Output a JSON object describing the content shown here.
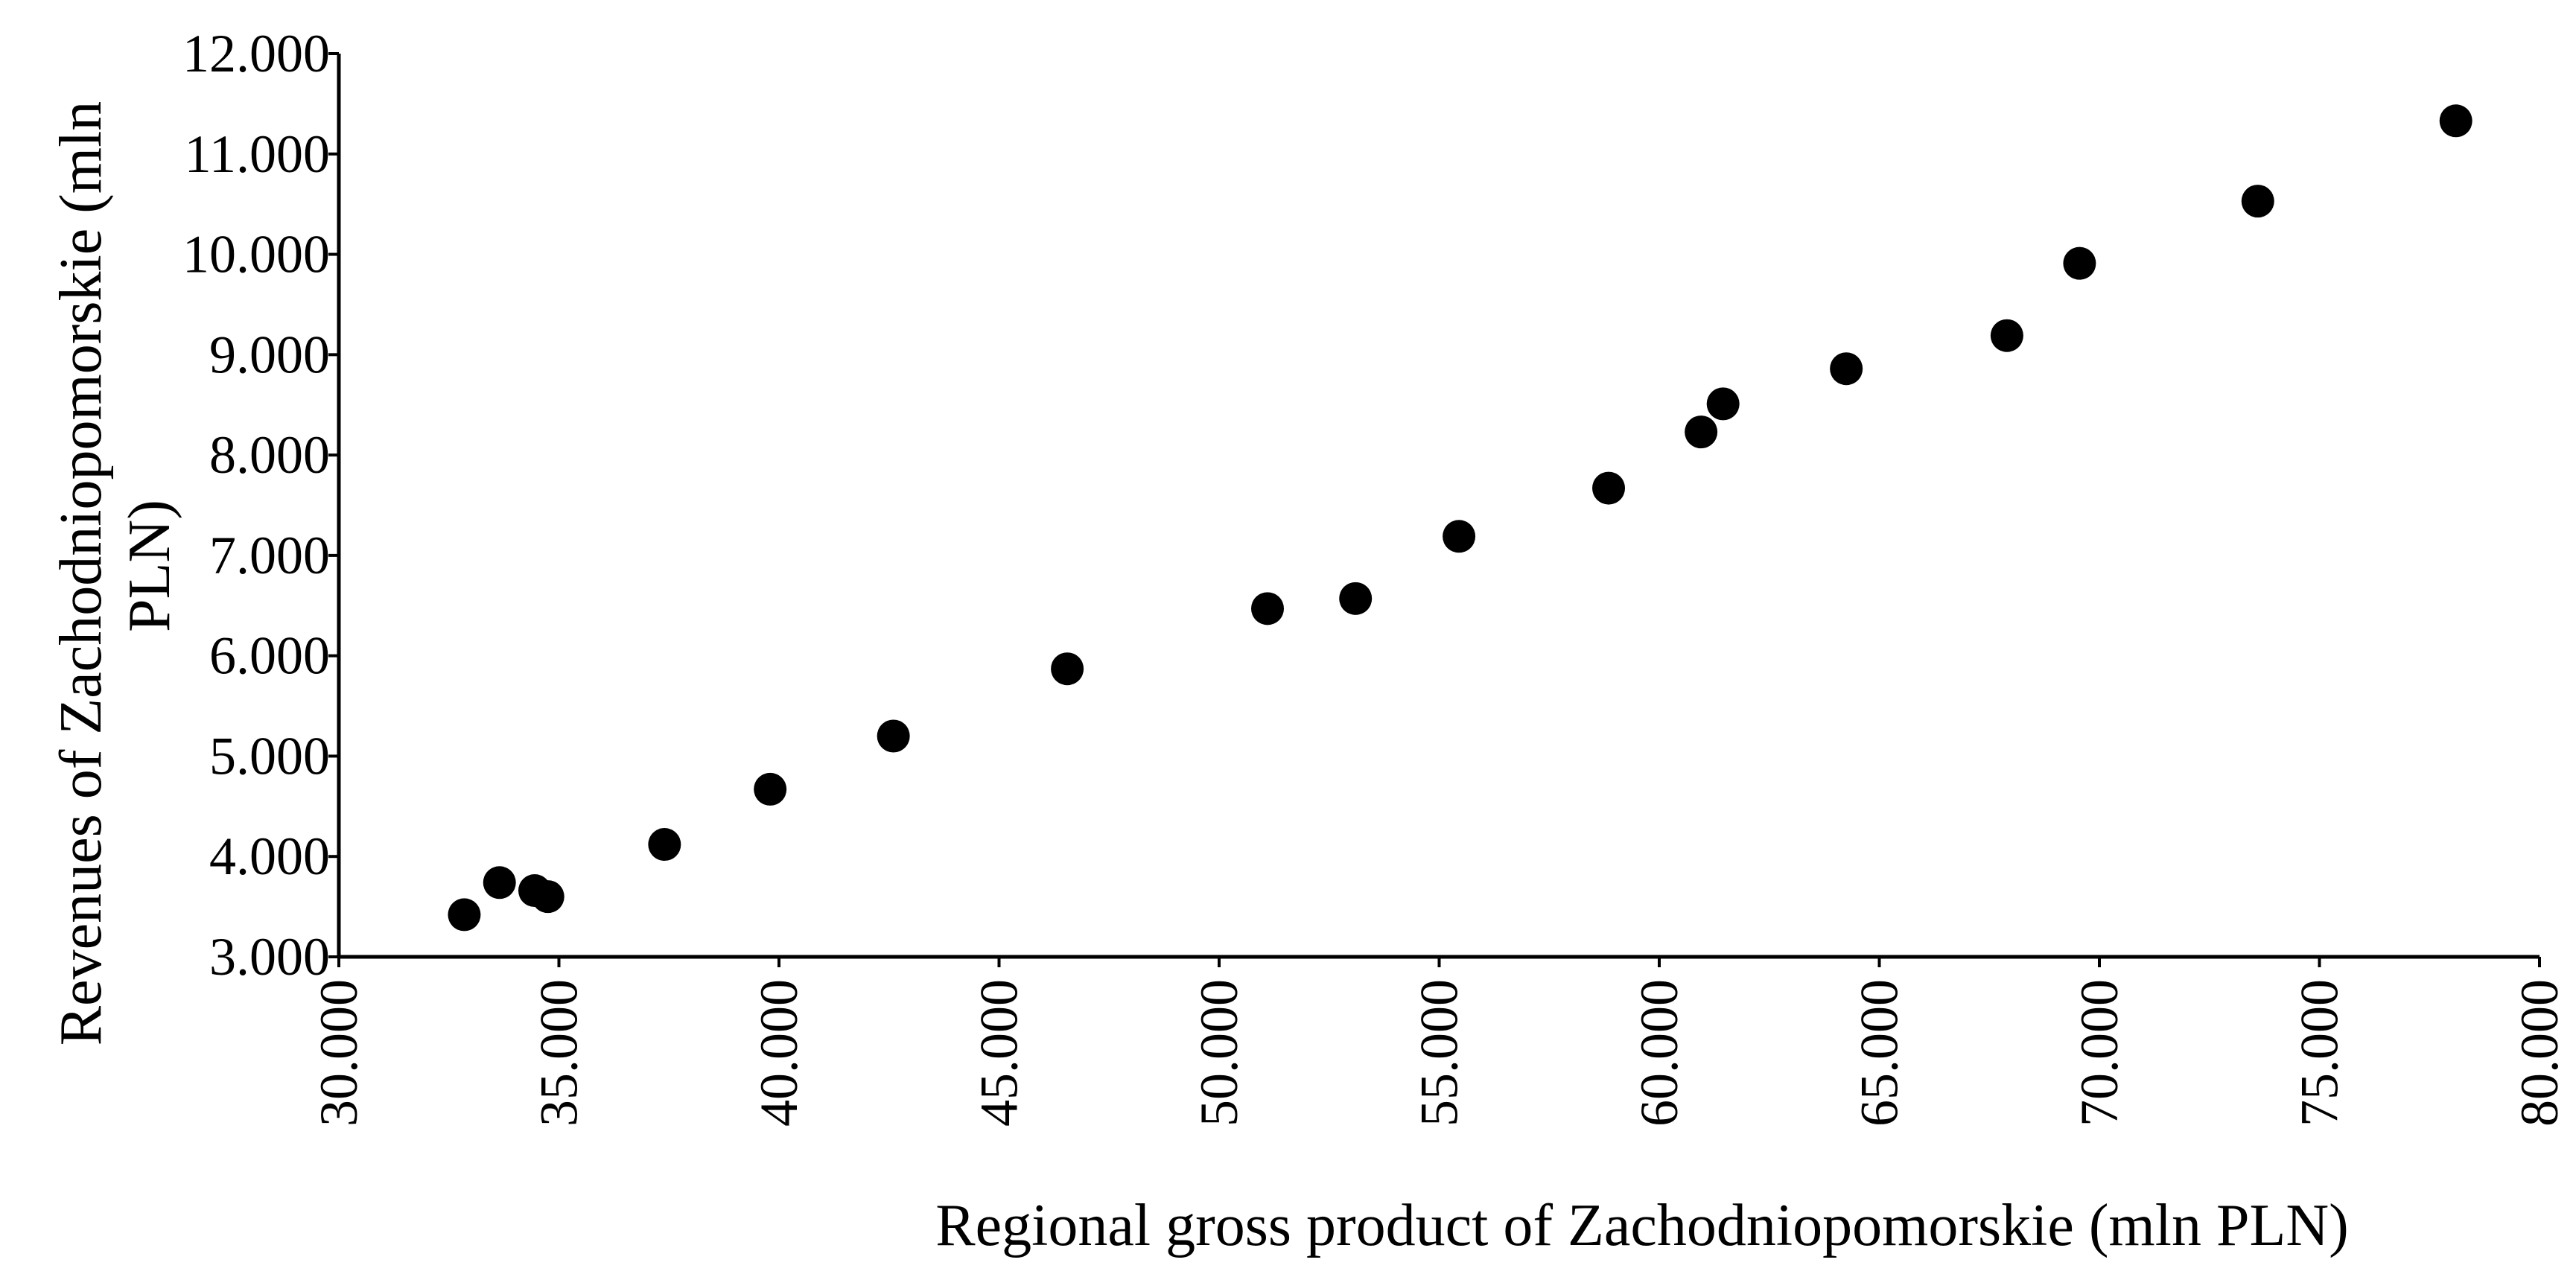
{
  "chart_data": {
    "type": "scatter",
    "xlabel": "Regional gross product of Zachodniopomorskie (mln PLN)",
    "ylabel_lines": [
      "Revenues of Zachodniopomorskie (mln",
      "PLN)"
    ],
    "xlim": [
      30000,
      80000
    ],
    "ylim": [
      3000,
      12000
    ],
    "x_ticks": [
      30000,
      35000,
      40000,
      45000,
      50000,
      55000,
      60000,
      65000,
      70000,
      75000,
      80000
    ],
    "x_tick_labels": [
      "30.000",
      "35.000",
      "40.000",
      "45.000",
      "50.000",
      "55.000",
      "60.000",
      "65.000",
      "70.000",
      "75.000",
      "80.000"
    ],
    "y_ticks": [
      3000,
      4000,
      5000,
      6000,
      7000,
      8000,
      9000,
      10000,
      11000,
      12000
    ],
    "y_tick_labels": [
      "3.000",
      "4.000",
      "5.000",
      "6.000",
      "7.000",
      "8.000",
      "9.000",
      "10.000",
      "11.000",
      "12.000"
    ],
    "grid": false,
    "marker_color": "#000000",
    "points": [
      {
        "x": 32850,
        "y": 3420
      },
      {
        "x": 33650,
        "y": 3740
      },
      {
        "x": 34450,
        "y": 3660
      },
      {
        "x": 34750,
        "y": 3600
      },
      {
        "x": 37400,
        "y": 4120
      },
      {
        "x": 39800,
        "y": 4670
      },
      {
        "x": 42600,
        "y": 5200
      },
      {
        "x": 46550,
        "y": 5870
      },
      {
        "x": 51100,
        "y": 6470
      },
      {
        "x": 53100,
        "y": 6570
      },
      {
        "x": 55450,
        "y": 7190
      },
      {
        "x": 58850,
        "y": 7670
      },
      {
        "x": 60950,
        "y": 8230
      },
      {
        "x": 61450,
        "y": 8510
      },
      {
        "x": 64250,
        "y": 8860
      },
      {
        "x": 67900,
        "y": 9190
      },
      {
        "x": 69550,
        "y": 9910
      },
      {
        "x": 73600,
        "y": 10530
      },
      {
        "x": 78100,
        "y": 11330
      }
    ]
  }
}
